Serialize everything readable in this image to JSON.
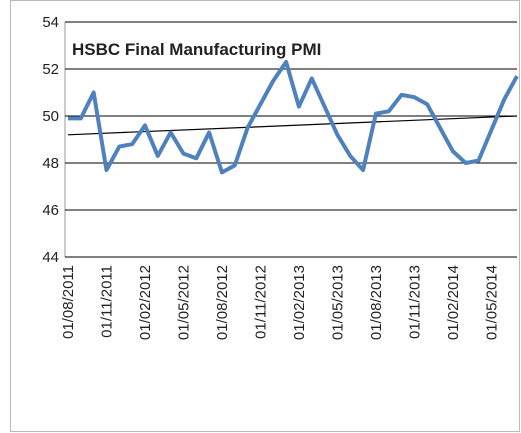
{
  "chart_data": {
    "type": "line",
    "title": "HSBC Final Manufacturing PMI",
    "categories": [
      "01/08/2011",
      null,
      null,
      "01/11/2011",
      null,
      null,
      "01/02/2012",
      null,
      null,
      "01/05/2012",
      null,
      null,
      "01/08/2012",
      null,
      null,
      "01/11/2012",
      null,
      null,
      "01/02/2013",
      null,
      null,
      "01/05/2013",
      null,
      null,
      "01/08/2013",
      null,
      null,
      "01/11/2013",
      null,
      null,
      "01/02/2014",
      null,
      null,
      "01/05/2014",
      null,
      null
    ],
    "series": [
      {
        "color": "#4f81bd",
        "values": [
          49.9,
          49.9,
          51.0,
          47.7,
          48.7,
          48.8,
          49.6,
          48.3,
          49.3,
          48.4,
          48.2,
          49.3,
          47.6,
          47.9,
          49.5,
          50.5,
          51.5,
          52.3,
          50.4,
          51.6,
          50.4,
          49.2,
          48.3,
          47.7,
          50.1,
          50.2,
          50.9,
          50.8,
          50.5,
          49.5,
          48.5,
          48.0,
          48.1,
          49.4,
          50.7,
          51.7
        ]
      }
    ],
    "trendline": {
      "color": "#000000",
      "start": 49.2,
      "end": 50.0
    },
    "ylim": [
      44,
      54
    ],
    "yticks": [
      44,
      46,
      48,
      50,
      52,
      54
    ],
    "grid": true
  }
}
